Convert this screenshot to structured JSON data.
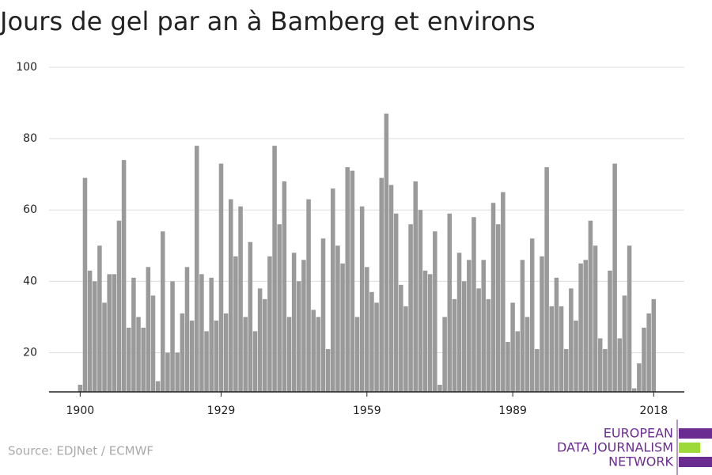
{
  "chart_data": {
    "type": "bar",
    "title": "Jours de gel par an à Bamberg et environs",
    "source": "Source: EDJNet / ECMWF",
    "logo": [
      "EUROPEAN",
      "DATA JOURNALISM",
      "NETWORK"
    ],
    "x": [
      1900,
      1901,
      1902,
      1903,
      1904,
      1905,
      1906,
      1907,
      1908,
      1909,
      1910,
      1911,
      1912,
      1913,
      1914,
      1915,
      1916,
      1917,
      1918,
      1919,
      1920,
      1921,
      1922,
      1923,
      1924,
      1925,
      1926,
      1927,
      1928,
      1929,
      1930,
      1931,
      1932,
      1933,
      1934,
      1935,
      1936,
      1937,
      1938,
      1939,
      1940,
      1941,
      1942,
      1943,
      1944,
      1945,
      1946,
      1947,
      1948,
      1949,
      1950,
      1951,
      1952,
      1953,
      1954,
      1955,
      1956,
      1957,
      1958,
      1959,
      1960,
      1961,
      1962,
      1963,
      1964,
      1965,
      1966,
      1967,
      1968,
      1969,
      1970,
      1971,
      1972,
      1973,
      1974,
      1975,
      1976,
      1977,
      1978,
      1979,
      1980,
      1981,
      1982,
      1983,
      1984,
      1985,
      1986,
      1987,
      1988,
      1989,
      1990,
      1991,
      1992,
      1993,
      1994,
      1995,
      1996,
      1997,
      1998,
      1999,
      2000,
      2001,
      2002,
      2003,
      2004,
      2005,
      2006,
      2007,
      2008,
      2009,
      2010,
      2011,
      2012,
      2013,
      2014,
      2015,
      2016,
      2017,
      2018
    ],
    "values": [
      11,
      69,
      43,
      40,
      50,
      34,
      42,
      42,
      57,
      74,
      27,
      41,
      30,
      27,
      44,
      36,
      12,
      54,
      20,
      40,
      20,
      31,
      44,
      29,
      78,
      42,
      26,
      41,
      29,
      73,
      31,
      63,
      47,
      61,
      30,
      51,
      26,
      38,
      35,
      47,
      78,
      56,
      68,
      30,
      48,
      40,
      46,
      63,
      32,
      30,
      52,
      21,
      66,
      50,
      45,
      72,
      71,
      30,
      61,
      44,
      37,
      34,
      69,
      87,
      67,
      59,
      39,
      33,
      56,
      68,
      60,
      43,
      42,
      54,
      11,
      30,
      59,
      35,
      48,
      40,
      46,
      58,
      38,
      46,
      35,
      62,
      56,
      65,
      23,
      34,
      26,
      46,
      30,
      52,
      21,
      47,
      72,
      33,
      41,
      33,
      21,
      38,
      29,
      45,
      46,
      57,
      50,
      24,
      21,
      43,
      73,
      24,
      36,
      50,
      10,
      17,
      27,
      31,
      35
    ],
    "color": "#9a9a9a",
    "xlim": [
      1893.6,
      2024.3
    ],
    "xticks": [
      1900,
      1929,
      1959,
      1989,
      2018
    ],
    "ylim": [
      9,
      100
    ],
    "yticks": [
      20,
      40,
      60,
      80,
      100
    ],
    "grid": true
  }
}
